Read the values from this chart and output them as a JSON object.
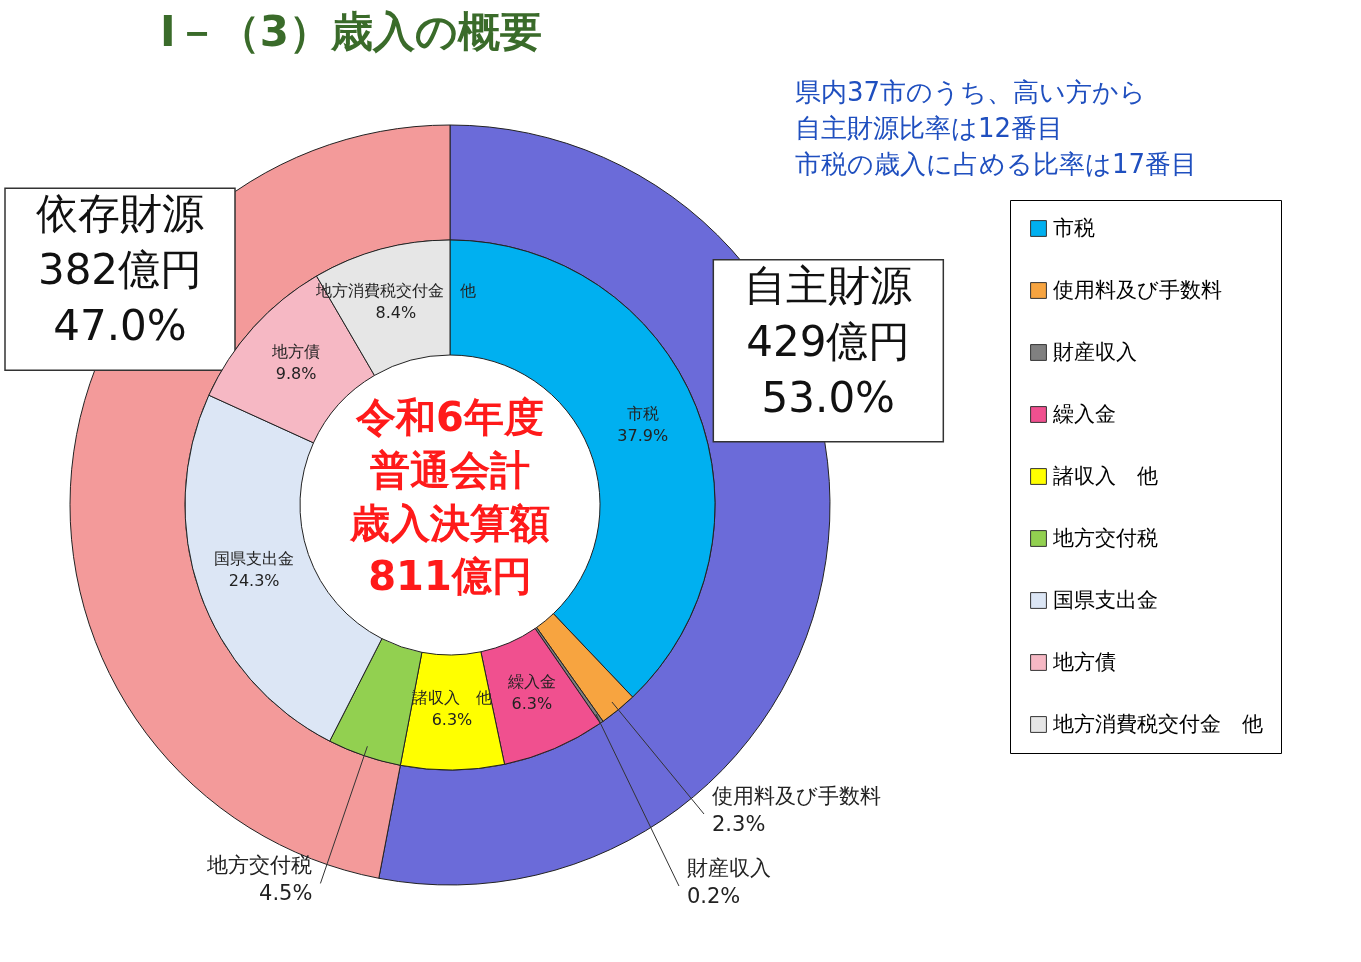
{
  "chart_data": [
    {
      "type": "donut",
      "title": "Ⅰ－（3）歳入の概要",
      "categories": [
        "自主財源",
        "依存財源"
      ],
      "values": [
        53.0,
        47.0
      ],
      "colors": [
        "#6b6bd9",
        "#f39a9a"
      ],
      "value_labels": [
        "429億円\n53.0%",
        "382億円\n47.0%"
      ],
      "annotations": [
        "県内37市のうち、高い方から",
        "自主財源比率は12番目",
        "市税の歳入に占める比率は17番目"
      ]
    },
    {
      "type": "donut",
      "categories": [
        "市税",
        "使用料及び手数料",
        "財産収入",
        "繰入金",
        "諸収入　他",
        "地方交付税",
        "国県支出金",
        "地方債",
        "地方消費税交付金　他"
      ],
      "values": [
        37.9,
        2.3,
        0.2,
        6.3,
        6.3,
        4.5,
        24.3,
        9.8,
        8.4
      ],
      "colors": [
        "#00b0f0",
        "#f7a440",
        "#808080",
        "#f0508f",
        "#ffff00",
        "#92d050",
        "#dce6f5",
        "#f6b8c4",
        "#e6e6e6"
      ],
      "value_labels": [
        "37.9%",
        "2.3%",
        "0.2%",
        "6.3%",
        "6.3%",
        "4.5%",
        "24.3%",
        "9.8%",
        "8.4%"
      ],
      "legend": "right",
      "annotations": [
        "令和6年度",
        "普通会計",
        "歳入決算額",
        "811億円"
      ]
    }
  ]
}
